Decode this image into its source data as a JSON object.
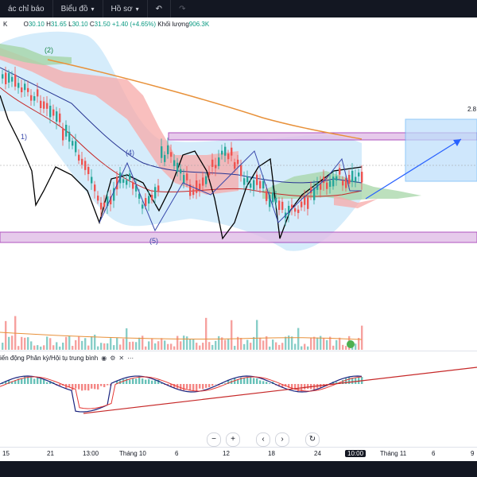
{
  "toolbar": {
    "indicators_label": "ác chỉ báo",
    "chart_label": "Biểu đồ",
    "profile_label": "Hồ sơ"
  },
  "legend": {
    "symbol_tail": "K",
    "o_label": "O",
    "o_value": "30.10",
    "h_label": "H",
    "h_value": "31.65",
    "l_label": "L",
    "l_value": "30.10",
    "c_label": "C",
    "c_value": "31.50",
    "change": "+1.40 (+4.65%)",
    "volume_label": "Khối lượng",
    "volume_value": "906.3K"
  },
  "price_label": "2.8",
  "wave_labels": {
    "w2": "(2)",
    "w1": "1)",
    "w4": "(4)",
    "w5": "(5)"
  },
  "indicator_legend": "iến động Phân kỳ/Hội tụ trung bình",
  "time_axis": [
    "15",
    "21",
    "13:00",
    "Tháng 10",
    "6",
    "12",
    "18",
    "24",
    "10:00",
    "Tháng 11",
    "6",
    "9"
  ],
  "nav": {
    "zoom_out": "−",
    "zoom_in": "+",
    "back": "‹",
    "forward": "›",
    "reset": "↻"
  },
  "colors": {
    "up": "#26a69a",
    "down": "#ef5350",
    "cloud_up": "#a5d6a7",
    "cloud_down": "#f7a9a8",
    "band": "#b2dcf7",
    "zone": "#e1bee7",
    "ma_long": "#e8913a",
    "arrow": "#2962ff"
  }
}
